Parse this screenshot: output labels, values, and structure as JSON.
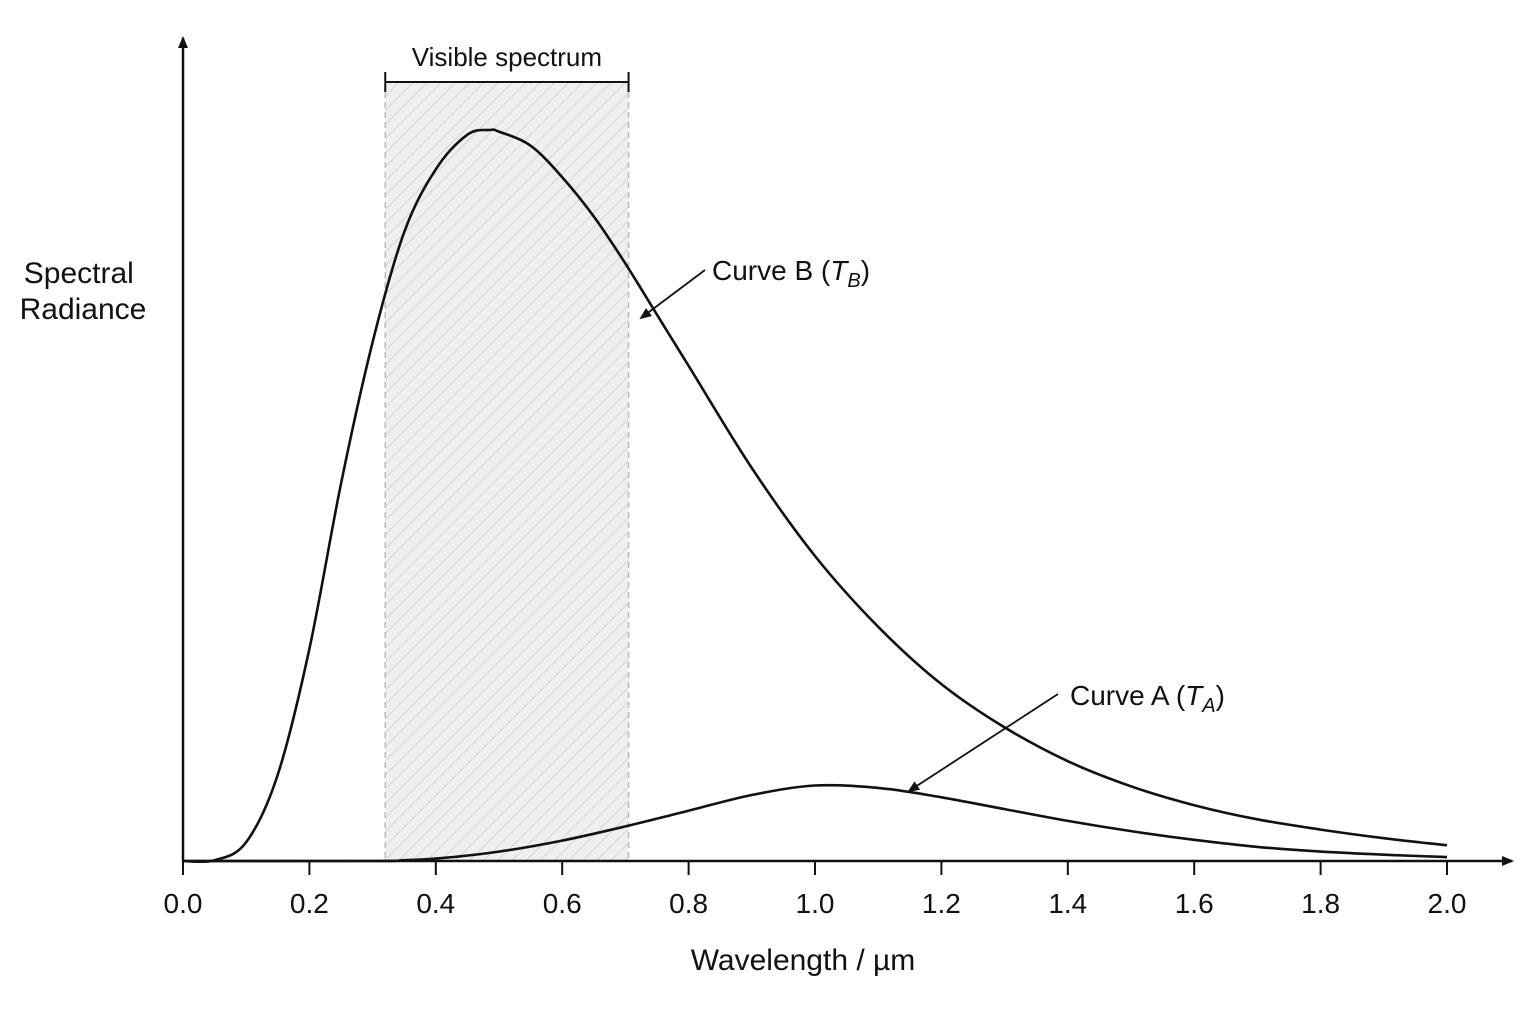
{
  "chart_data": {
    "type": "line",
    "xlabel": "Wavelength / µm",
    "ylabel_lines": [
      "Spectral",
      "Radiance"
    ],
    "xlim": [
      0.0,
      2.0
    ],
    "ylim": [
      0,
      1.0
    ],
    "x_ticks": [
      "0.0",
      "0.2",
      "0.4",
      "0.6",
      "0.8",
      "1.0",
      "1.2",
      "1.4",
      "1.6",
      "1.8",
      "2.0"
    ],
    "grid": false,
    "visible_band": {
      "label": "Visible spectrum",
      "start": 0.32,
      "end": 0.705
    },
    "series": [
      {
        "name": "Curve B",
        "label_main": "Curve B (",
        "label_symbol": "T",
        "label_sub": "B",
        "label_close": ")",
        "peak_wavelength": 0.485,
        "peak_value": 0.93,
        "points": [
          [
            0.0,
            0.0
          ],
          [
            0.05,
            0.001
          ],
          [
            0.1,
            0.024
          ],
          [
            0.15,
            0.11
          ],
          [
            0.2,
            0.27
          ],
          [
            0.25,
            0.48
          ],
          [
            0.3,
            0.66
          ],
          [
            0.35,
            0.8
          ],
          [
            0.4,
            0.88
          ],
          [
            0.45,
            0.924
          ],
          [
            0.485,
            0.93
          ],
          [
            0.5,
            0.928
          ],
          [
            0.55,
            0.91
          ],
          [
            0.6,
            0.87
          ],
          [
            0.65,
            0.82
          ],
          [
            0.7,
            0.76
          ],
          [
            0.75,
            0.695
          ],
          [
            0.8,
            0.63
          ],
          [
            0.9,
            0.5
          ],
          [
            1.0,
            0.388
          ],
          [
            1.1,
            0.298
          ],
          [
            1.2,
            0.225
          ],
          [
            1.3,
            0.17
          ],
          [
            1.4,
            0.127
          ],
          [
            1.5,
            0.095
          ],
          [
            1.6,
            0.071
          ],
          [
            1.7,
            0.053
          ],
          [
            1.8,
            0.04
          ],
          [
            1.9,
            0.029
          ],
          [
            2.0,
            0.02
          ]
        ]
      },
      {
        "name": "Curve A",
        "label_main": "Curve A (",
        "label_symbol": "T",
        "label_sub": "A",
        "label_close": ")",
        "peak_wavelength": 1.0,
        "peak_value": 0.096,
        "points": [
          [
            0.0,
            0.0
          ],
          [
            0.3,
            0.0
          ],
          [
            0.35,
            0.001
          ],
          [
            0.4,
            0.003
          ],
          [
            0.5,
            0.012
          ],
          [
            0.6,
            0.026
          ],
          [
            0.7,
            0.044
          ],
          [
            0.8,
            0.064
          ],
          [
            0.9,
            0.084
          ],
          [
            1.0,
            0.096
          ],
          [
            1.1,
            0.093
          ],
          [
            1.2,
            0.081
          ],
          [
            1.3,
            0.066
          ],
          [
            1.4,
            0.051
          ],
          [
            1.5,
            0.038
          ],
          [
            1.6,
            0.027
          ],
          [
            1.7,
            0.018
          ],
          [
            1.8,
            0.012
          ],
          [
            1.9,
            0.008
          ],
          [
            2.0,
            0.005
          ]
        ]
      }
    ]
  }
}
